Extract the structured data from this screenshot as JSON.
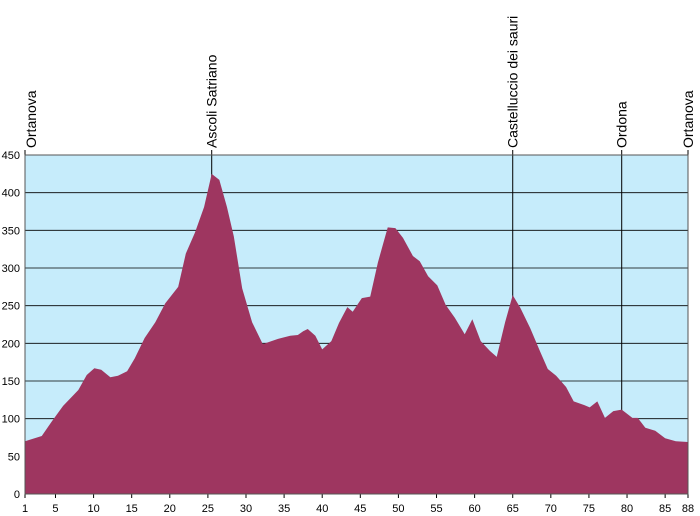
{
  "chart_data": {
    "type": "area",
    "x": [
      1,
      3.2,
      4.5,
      6.0,
      8.0,
      9.1,
      10.1,
      11.0,
      12.2,
      13.2,
      14.4,
      15.4,
      16.7,
      18.1,
      19.4,
      21.1,
      22.1,
      23.3,
      24.5,
      25.5,
      26.5,
      27.5,
      28.4,
      29.5,
      30.8,
      32.2,
      34.2,
      35.8,
      36.8,
      37.5,
      38.1,
      39.1,
      40.0,
      41.2,
      42.2,
      43.3,
      44.0,
      45.2,
      46.3,
      47.3,
      48.6,
      49.6,
      50.6,
      51.9,
      52.8,
      53.9,
      55.1,
      56.2,
      57.4,
      58.7,
      59.7,
      60.8,
      62.0,
      62.9,
      64.0,
      65.0,
      66.0,
      67.3,
      68.6,
      69.6,
      70.7,
      72.0,
      73.0,
      74.4,
      75.1,
      76.1,
      77.1,
      78.2,
      79.3,
      80.7,
      81.4,
      82.4,
      83.7,
      85.0,
      86.4,
      88
    ],
    "values": [
      70,
      77,
      96,
      117,
      138,
      158,
      167,
      165,
      155,
      157,
      163,
      180,
      207,
      228,
      253,
      275,
      319,
      347,
      381,
      425,
      417,
      381,
      342,
      273,
      228,
      199,
      206,
      210,
      211,
      216,
      219,
      210,
      192,
      203,
      227,
      248,
      242,
      260,
      262,
      307,
      354,
      353,
      340,
      316,
      309,
      289,
      277,
      251,
      234,
      212,
      232,
      203,
      190,
      182,
      228,
      264,
      247,
      220,
      189,
      166,
      157,
      142,
      123,
      118,
      115,
      123,
      101,
      110,
      112,
      101,
      101,
      88,
      84,
      74,
      70,
      69
    ],
    "color": "#9e3660",
    "background": "#c6ecfb",
    "xlim": [
      1,
      88
    ],
    "xticks": [
      1,
      5,
      10,
      15,
      20,
      25,
      30,
      35,
      40,
      45,
      50,
      55,
      60,
      65,
      70,
      75,
      80,
      85,
      88
    ],
    "ylim": [
      0,
      450
    ],
    "yticks": [
      0,
      50,
      100,
      150,
      200,
      250,
      300,
      350,
      400,
      450
    ],
    "grid": true,
    "annotations": [
      {
        "label": "Ortanova",
        "x": 1
      },
      {
        "label": "Ascoli Satriano",
        "x": 25.5
      },
      {
        "label": "Castelluccio dei sauri",
        "x": 65
      },
      {
        "label": "Ordona",
        "x": 79.3
      },
      {
        "label": "Ortanova",
        "x": 88
      }
    ]
  }
}
